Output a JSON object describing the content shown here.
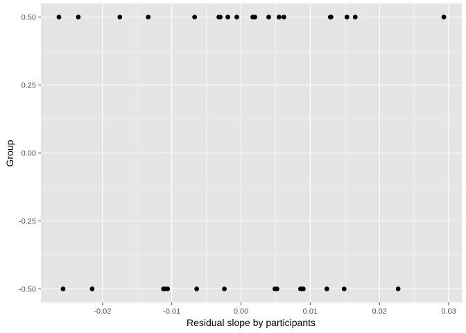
{
  "chart_data": {
    "type": "scatter",
    "xlabel": "Residual slope by participants",
    "ylabel": "Group",
    "xlim": [
      -0.0289,
      0.0319
    ],
    "ylim": [
      -0.55,
      0.55
    ],
    "x_ticks": [
      -0.02,
      -0.01,
      0.0,
      0.01,
      0.02,
      0.03
    ],
    "x_tick_labels": [
      "-0.02",
      "-0.01",
      "0.00",
      "0.01",
      "0.02",
      "0.03"
    ],
    "y_ticks": [
      -0.5,
      -0.25,
      0.0,
      0.25,
      0.5
    ],
    "y_tick_labels": [
      "-0.50",
      "-0.25",
      "0.00",
      "0.25",
      "0.50"
    ],
    "grid": true,
    "panel_color": "#e5e5e5",
    "grid_color": "#ffffff",
    "point_color": "#000000",
    "points": [
      {
        "x": -0.0263,
        "y": 0.5
      },
      {
        "x": -0.0235,
        "y": 0.5
      },
      {
        "x": -0.0175,
        "y": 0.5
      },
      {
        "x": -0.0134,
        "y": 0.5
      },
      {
        "x": -0.0067,
        "y": 0.5
      },
      {
        "x": -0.0032,
        "y": 0.5
      },
      {
        "x": -0.003,
        "y": 0.5
      },
      {
        "x": -0.0019,
        "y": 0.5
      },
      {
        "x": -0.0006,
        "y": 0.5
      },
      {
        "x": 0.0017,
        "y": 0.5
      },
      {
        "x": 0.002,
        "y": 0.5
      },
      {
        "x": 0.004,
        "y": 0.5
      },
      {
        "x": 0.0055,
        "y": 0.5
      },
      {
        "x": 0.0062,
        "y": 0.5
      },
      {
        "x": 0.0129,
        "y": 0.5
      },
      {
        "x": 0.013,
        "y": 0.5
      },
      {
        "x": 0.0153,
        "y": 0.5
      },
      {
        "x": 0.0165,
        "y": 0.5
      },
      {
        "x": 0.0293,
        "y": 0.5
      },
      {
        "x": -0.0257,
        "y": -0.5
      },
      {
        "x": -0.0215,
        "y": -0.5
      },
      {
        "x": -0.0112,
        "y": -0.5
      },
      {
        "x": -0.011,
        "y": -0.5
      },
      {
        "x": -0.0106,
        "y": -0.5
      },
      {
        "x": -0.0064,
        "y": -0.5
      },
      {
        "x": -0.0024,
        "y": -0.5
      },
      {
        "x": 0.0049,
        "y": -0.5
      },
      {
        "x": 0.0052,
        "y": -0.5
      },
      {
        "x": 0.0086,
        "y": -0.5
      },
      {
        "x": 0.0088,
        "y": -0.5
      },
      {
        "x": 0.009,
        "y": -0.5
      },
      {
        "x": 0.0124,
        "y": -0.5
      },
      {
        "x": 0.0149,
        "y": -0.5
      },
      {
        "x": 0.0227,
        "y": -0.5
      }
    ]
  }
}
